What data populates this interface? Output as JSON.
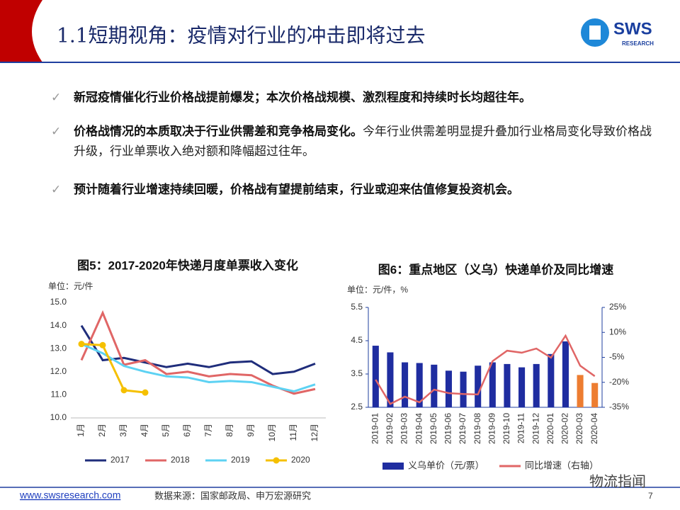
{
  "title": "1.1短期视角：疫情对行业的冲击即将过去",
  "logo": {
    "text": "SWS",
    "sub": "RESEARCH"
  },
  "bullets": [
    {
      "bold": "新冠疫情催化行业价格战提前爆发；本次价格战规模、激烈程度和持续时长均超往年。"
    },
    {
      "bold": "价格战情况的本质取决于行业供需差和竞争格局变化。",
      "text": "今年行业供需差明显提升叠加行业格局变化导致价格战升级，行业单票收入绝对额和降幅超过往年。"
    },
    {
      "bold": "预计随着行业增速持续回暖，价格战有望提前结束，行业或迎来估值修复投资机会。"
    }
  ],
  "footer": {
    "url": "www.swsresearch.com",
    "source": "数据来源：国家邮政局、申万宏源研究",
    "page": "7",
    "watermark": "物流指闻"
  },
  "chart_data": [
    {
      "type": "line",
      "title": "图5：2017-2020年快递月度单票收入变化",
      "unit": "单位：元/件",
      "categories": [
        "1月",
        "2月",
        "3月",
        "4月",
        "5月",
        "6月",
        "7月",
        "8月",
        "9月",
        "10月",
        "11月",
        "12月"
      ],
      "ylim": [
        10,
        15
      ],
      "yticks": [
        {
          "value": 10,
          "label": "10.0"
        },
        {
          "value": 11,
          "label": "11.0"
        },
        {
          "value": 12,
          "label": "12.0"
        },
        {
          "value": 13,
          "label": "13.0"
        },
        {
          "value": 14,
          "label": "14.0"
        },
        {
          "value": 15,
          "label": "15.0"
        }
      ],
      "legend": "bottom",
      "series": [
        {
          "name": "2017",
          "color": "#1f2d7b",
          "values": [
            14.0,
            12.5,
            12.6,
            12.4,
            12.2,
            12.35,
            12.2,
            12.4,
            12.45,
            11.9,
            12.0,
            12.35
          ]
        },
        {
          "name": "2018",
          "color": "#e06666",
          "values": [
            12.5,
            14.55,
            12.3,
            12.5,
            11.9,
            12.0,
            11.8,
            11.9,
            11.85,
            11.4,
            11.05,
            11.25
          ]
        },
        {
          "name": "2019",
          "color": "#5dd2f3",
          "values": [
            13.2,
            12.8,
            12.25,
            12.0,
            11.8,
            11.75,
            11.55,
            11.6,
            11.55,
            11.35,
            11.15,
            11.45
          ]
        },
        {
          "name": "2020",
          "color": "#f5c000",
          "markers": true,
          "values": [
            13.2,
            13.15,
            11.2,
            11.1,
            null,
            null,
            null,
            null,
            null,
            null,
            null,
            null
          ]
        }
      ]
    },
    {
      "type": "bar_line",
      "title": "图6：重点地区（义乌）快递单价及同比增速",
      "unit": "单位：元/件，%",
      "categories": [
        "2019-01",
        "2019-02",
        "2019-03",
        "2019-04",
        "2019-05",
        "2019-06",
        "2019-07",
        "2019-08",
        "2019-09",
        "2019-10",
        "2019-11",
        "2019-12",
        "2020-01",
        "2020-02",
        "2020-03",
        "2020-04"
      ],
      "ylim": [
        2.5,
        5.5
      ],
      "yticks": [
        2.5,
        3.5,
        4.5,
        5.5
      ],
      "y2lim": [
        -35,
        25
      ],
      "y2ticks": [
        {
          "value": -35,
          "label": "-35%"
        },
        {
          "value": -20,
          "label": "-20%"
        },
        {
          "value": -5,
          "label": "-5%"
        },
        {
          "value": 10,
          "label": "10%"
        },
        {
          "value": 25,
          "label": "25%"
        }
      ],
      "legend": "bottom",
      "series": [
        {
          "name": "义乌单价（元/票）",
          "color": "#1f2da0",
          "colors": [
            "#1f2da0",
            "#1f2da0",
            "#1f2da0",
            "#1f2da0",
            "#1f2da0",
            "#1f2da0",
            "#1f2da0",
            "#1f2da0",
            "#1f2da0",
            "#1f2da0",
            "#1f2da0",
            "#1f2da0",
            "#1f2da0",
            "#1f2da0",
            "#ed7d31",
            "#ed7d31"
          ],
          "values": [
            4.35,
            4.15,
            3.85,
            3.83,
            3.78,
            3.6,
            3.57,
            3.75,
            3.85,
            3.8,
            3.7,
            3.8,
            4.1,
            4.48,
            3.47,
            3.23
          ]
        },
        {
          "name": "同比增速（右轴）",
          "color": "#e06666",
          "axis": "y2",
          "values": [
            -18.4,
            -33,
            -28.6,
            -32,
            -24.4,
            -26.5,
            -27,
            -27.3,
            -7.3,
            -1,
            -2.2,
            0.3,
            -5.2,
            8,
            -10,
            -16.3
          ]
        }
      ]
    }
  ]
}
